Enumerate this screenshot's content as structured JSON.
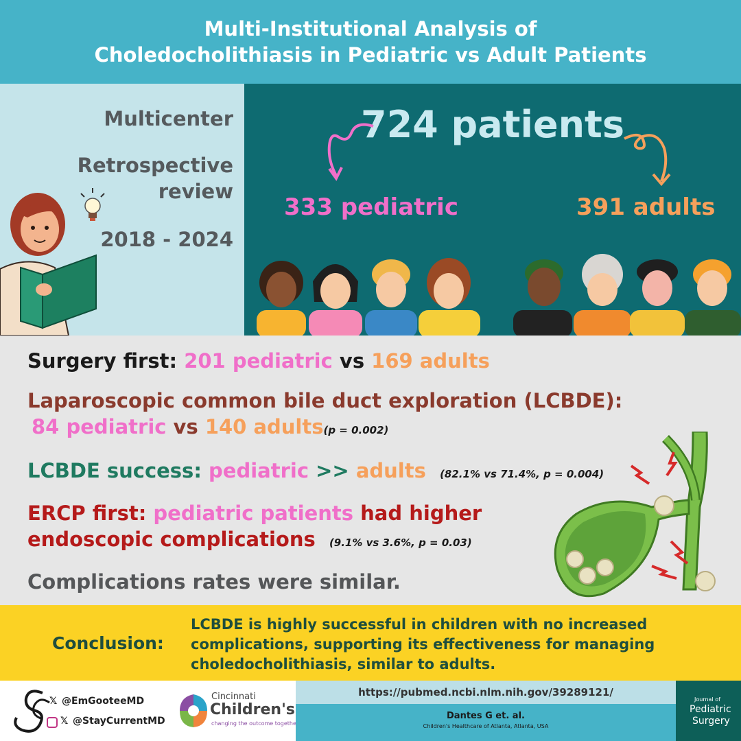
{
  "header": {
    "title_line1": "Multi-Institutional Analysis of",
    "title_line2": "Choledocholithiasis in Pediatric vs Adult Patients"
  },
  "study_design": {
    "multicenter": "Multicenter",
    "retrospective_line1": "Retrospective",
    "retrospective_line2": "review",
    "years": "2018 - 2024"
  },
  "cohort": {
    "total": "724 patients",
    "pediatric": "333 pediatric",
    "adults": "391 adults"
  },
  "findings": {
    "surgery_first_label": "Surgery first: ",
    "surgery_first_peds": "201 pediatric",
    "vs": " vs ",
    "surgery_first_adults": "169 adults",
    "lcbde_label": "Laparoscopic common bile duct exploration (LCBDE):",
    "lcbde_peds": "84 pediatric",
    "lcbde_adults": "140 adults",
    "lcbde_stat": "(p = 0.002)",
    "success_label": "LCBDE success: ",
    "success_peds": "pediatric",
    "success_op": " >> ",
    "success_adults": "adults",
    "success_stat": "(82.1% vs 71.4%, p = 0.004)",
    "ercp_label": "ERCP first: ",
    "ercp_peds": "pediatric patients",
    "ercp_rest1": " had higher",
    "ercp_line2": "endoscopic complications",
    "ercp_stat": "(9.1% vs 3.6%, p = 0.03)",
    "complications": "Complications rates were similar."
  },
  "conclusion": {
    "label": "Conclusion:",
    "line1": "LCBDE is highly successful in children with no increased",
    "line2": "complications, supporting its effectiveness for managing",
    "line3": "choledocholithiasis, similar to adults."
  },
  "footer": {
    "handle1": "@EmGooteeMD",
    "handle2": "@StayCurrentMD",
    "hospital_name_line1": "Cincinnati",
    "hospital_name_line2": "Children's",
    "hospital_tagline": "changing the outcome together",
    "link": "https://pubmed.ncbi.nlm.nih.gov/39289121/",
    "citation": "Dantes G et. al.",
    "affiliation": "Children's Healthcare of Atlanta, Atlanta, USA",
    "journal_line1": "Journal of",
    "journal_line2": "Pediatric",
    "journal_line3": "Surgery"
  },
  "colors": {
    "header_bg": "#46b3c8",
    "teal_panel": "#0e6b71",
    "pediatric": "#f06fc9",
    "adults": "#f6a05b",
    "conclusion_bg": "#fbd224"
  }
}
